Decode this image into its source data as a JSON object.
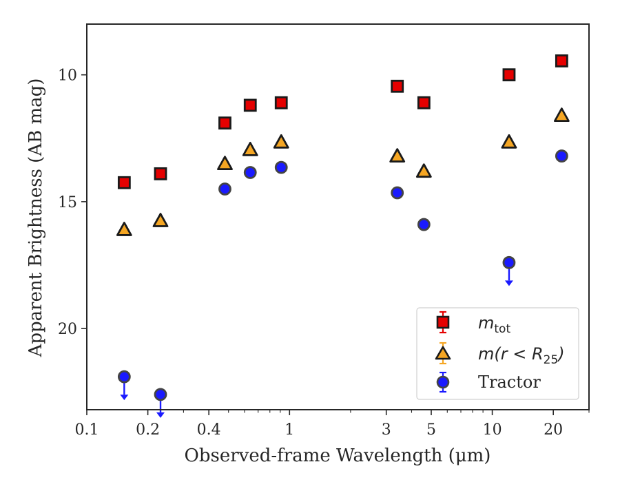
{
  "chart_data": {
    "type": "scatter",
    "xlabel": "Observed-frame Wavelength (μm)",
    "ylabel": "Apparent Brightness (AB mag)",
    "xscale": "log",
    "xlim": [
      0.1,
      30
    ],
    "ylim": [
      23.2,
      8.0
    ],
    "y_inverted": true,
    "x_ticks": [
      {
        "value": 0.1,
        "label": "0.1"
      },
      {
        "value": 0.2,
        "label": "0.2"
      },
      {
        "value": 0.4,
        "label": "0.4"
      },
      {
        "value": 1,
        "label": "1"
      },
      {
        "value": 3,
        "label": "3"
      },
      {
        "value": 5,
        "label": "5"
      },
      {
        "value": 10,
        "label": "10"
      },
      {
        "value": 20,
        "label": "20"
      }
    ],
    "y_ticks": [
      {
        "value": 10,
        "label": "10"
      },
      {
        "value": 15,
        "label": "15"
      },
      {
        "value": 20,
        "label": "20"
      }
    ],
    "grid": false,
    "legend_position": "lower-right",
    "series": [
      {
        "name": "m_tot",
        "marker": "square",
        "color": "#e50000",
        "edge_color": "#1a1a1a",
        "points": [
          {
            "x": 0.153,
            "y": 14.25
          },
          {
            "x": 0.231,
            "y": 13.9
          },
          {
            "x": 0.48,
            "y": 11.9
          },
          {
            "x": 0.64,
            "y": 11.2
          },
          {
            "x": 0.91,
            "y": 11.1
          },
          {
            "x": 3.4,
            "y": 10.45
          },
          {
            "x": 4.6,
            "y": 11.1
          },
          {
            "x": 12.1,
            "y": 10.0
          },
          {
            "x": 22.0,
            "y": 9.45
          }
        ]
      },
      {
        "name": "m(r < R_25)",
        "marker": "triangle",
        "color": "#f5a623",
        "edge_color": "#1a1a1a",
        "points": [
          {
            "x": 0.153,
            "y": 16.1
          },
          {
            "x": 0.231,
            "y": 15.75
          },
          {
            "x": 0.48,
            "y": 13.5
          },
          {
            "x": 0.64,
            "y": 12.95
          },
          {
            "x": 0.91,
            "y": 12.65
          },
          {
            "x": 3.4,
            "y": 13.2
          },
          {
            "x": 4.6,
            "y": 13.8
          },
          {
            "x": 12.1,
            "y": 12.65
          },
          {
            "x": 22.0,
            "y": 11.6
          }
        ]
      },
      {
        "name": "Tractor",
        "marker": "circle",
        "color": "#1a1aff",
        "edge_color": "#444444",
        "points": [
          {
            "x": 0.153,
            "y": 21.9,
            "upper_limit": true
          },
          {
            "x": 0.231,
            "y": 22.6,
            "upper_limit": true
          },
          {
            "x": 0.48,
            "y": 14.5
          },
          {
            "x": 0.64,
            "y": 13.85
          },
          {
            "x": 0.91,
            "y": 13.65
          },
          {
            "x": 3.4,
            "y": 14.65
          },
          {
            "x": 4.6,
            "y": 15.9
          },
          {
            "x": 12.1,
            "y": 17.4,
            "upper_limit": true
          },
          {
            "x": 22.0,
            "y": 13.2
          }
        ]
      }
    ],
    "legend": {
      "tot_base": "m",
      "tot_sub": "tot",
      "r25_pre": "m(r < R",
      "r25_sub": "25",
      "r25_post": ")",
      "tractor_label": "Tractor"
    }
  }
}
